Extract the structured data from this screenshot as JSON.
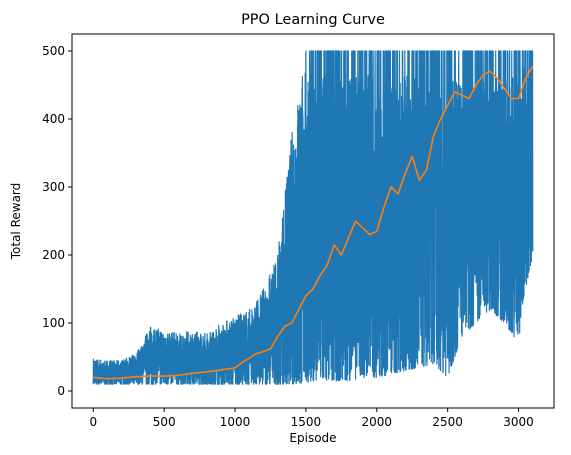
{
  "chart_data": {
    "type": "line",
    "title": "PPO Learning Curve",
    "xlabel": "Episode",
    "ylabel": "Total Reward",
    "xlim": [
      -150,
      3250
    ],
    "ylim": [
      -25,
      525
    ],
    "x_ticks": [
      0,
      500,
      1000,
      1500,
      2000,
      2500,
      3000
    ],
    "y_ticks": [
      0,
      100,
      200,
      300,
      400,
      500
    ],
    "grid": false,
    "legend": "none",
    "series": [
      {
        "color": "#1f77b4",
        "style": "raw episode reward, highly noisy",
        "x": [
          0,
          100,
          200,
          300,
          400,
          500,
          600,
          700,
          800,
          900,
          1000,
          1100,
          1200,
          1300,
          1400,
          1500,
          1550,
          1600,
          1700,
          1800,
          1900,
          2000,
          2100,
          2200,
          2300,
          2400,
          2500,
          2600,
          2700,
          2800,
          2900,
          3000,
          3050,
          3100
        ],
        "low": [
          10,
          10,
          10,
          10,
          10,
          10,
          10,
          10,
          10,
          10,
          10,
          10,
          10,
          10,
          10,
          12,
          15,
          15,
          15,
          15,
          20,
          20,
          25,
          30,
          35,
          40,
          20,
          80,
          100,
          120,
          100,
          70,
          150,
          200
        ],
        "high": [
          48,
          45,
          45,
          55,
          95,
          90,
          85,
          88,
          85,
          100,
          110,
          120,
          150,
          200,
          380,
          500,
          500,
          500,
          500,
          500,
          500,
          500,
          500,
          500,
          500,
          500,
          500,
          500,
          500,
          500,
          500,
          500,
          500,
          500
        ]
      },
      {
        "color": "#ff7f0e",
        "style": "moving average",
        "x": [
          0,
          50,
          100,
          200,
          300,
          400,
          500,
          600,
          700,
          800,
          900,
          1000,
          1050,
          1100,
          1150,
          1200,
          1250,
          1300,
          1350,
          1400,
          1450,
          1500,
          1550,
          1600,
          1650,
          1700,
          1750,
          1800,
          1850,
          1900,
          1950,
          2000,
          2050,
          2100,
          2150,
          2200,
          2250,
          2300,
          2350,
          2400,
          2450,
          2500,
          2550,
          2600,
          2650,
          2700,
          2750,
          2800,
          2850,
          2900,
          2950,
          3000,
          3050,
          3100
        ],
        "values": [
          20,
          19,
          18,
          19,
          21,
          22,
          22,
          23,
          26,
          28,
          31,
          34,
          42,
          48,
          55,
          58,
          62,
          80,
          95,
          100,
          120,
          140,
          150,
          170,
          185,
          215,
          200,
          225,
          250,
          240,
          230,
          235,
          270,
          300,
          290,
          320,
          345,
          310,
          325,
          375,
          400,
          420,
          440,
          435,
          430,
          450,
          465,
          470,
          460,
          445,
          430,
          430,
          460,
          478
        ]
      }
    ]
  }
}
